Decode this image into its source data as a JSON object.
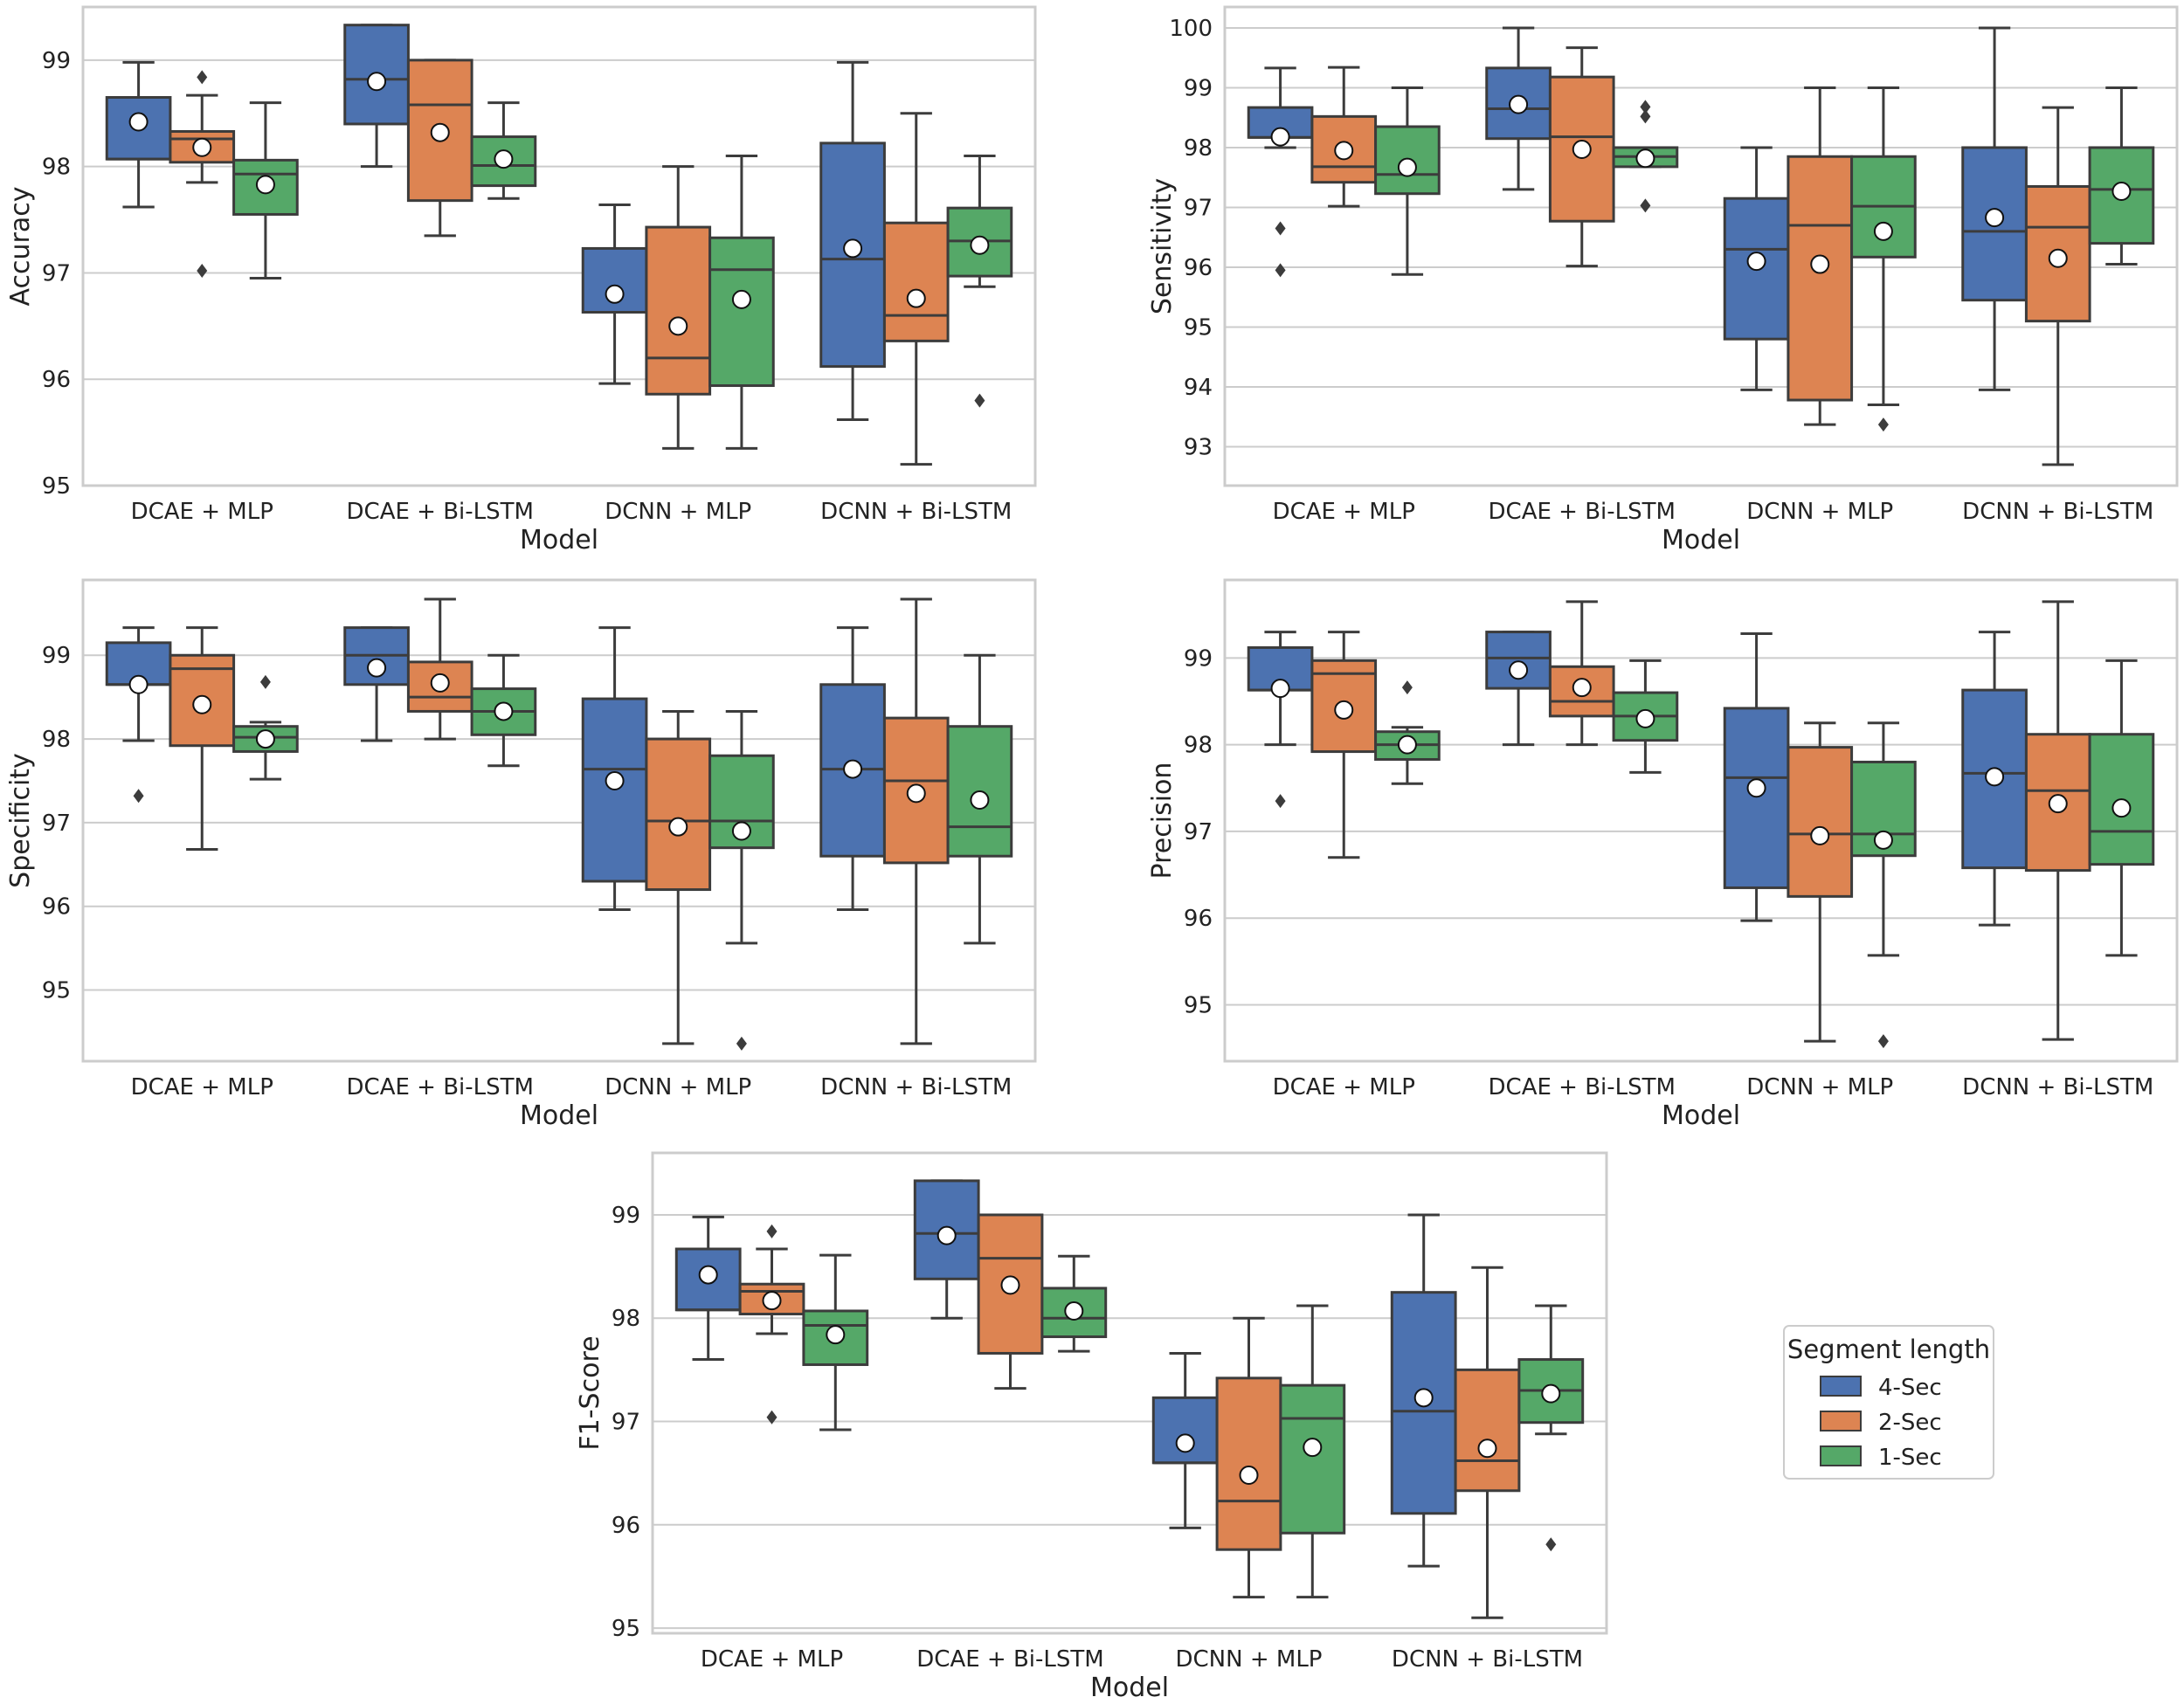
{
  "legend": {
    "title": "Segment length",
    "entries": [
      {
        "label": "4-Sec",
        "color": "#4c72b0"
      },
      {
        "label": "2-Sec",
        "color": "#dd8452"
      },
      {
        "label": "1-Sec",
        "color": "#55a868"
      }
    ]
  },
  "chart_data": [
    {
      "type": "box",
      "title": "",
      "xlabel": "Model",
      "ylabel": "Accuracy",
      "ylim": [
        95,
        99.5
      ],
      "yticks": [
        "95",
        "96",
        "97",
        "98",
        "99"
      ],
      "categories": [
        "DCAE + MLP",
        "DCAE + Bi-LSTM",
        "DCNN + MLP",
        "DCNN + Bi-LSTM"
      ],
      "series": [
        {
          "name": "4-Sec",
          "boxes": [
            {
              "whislo": 97.62,
              "q1": 98.07,
              "med": 98.07,
              "q3": 98.65,
              "whishi": 98.98,
              "mean": 98.42,
              "fliers": []
            },
            {
              "whislo": 98.0,
              "q1": 98.4,
              "med": 98.82,
              "q3": 99.33,
              "whishi": 99.33,
              "mean": 98.8,
              "fliers": []
            },
            {
              "whislo": 95.96,
              "q1": 96.63,
              "med": 96.63,
              "q3": 97.23,
              "whishi": 97.64,
              "mean": 96.8,
              "fliers": []
            },
            {
              "whislo": 95.62,
              "q1": 96.12,
              "med": 97.13,
              "q3": 98.22,
              "whishi": 98.98,
              "mean": 97.23,
              "fliers": []
            }
          ]
        },
        {
          "name": "2-Sec",
          "boxes": [
            {
              "whislo": 97.85,
              "q1": 98.04,
              "med": 98.26,
              "q3": 98.33,
              "whishi": 98.67,
              "mean": 98.18,
              "fliers": [
                98.84,
                97.02
              ]
            },
            {
              "whislo": 97.35,
              "q1": 97.68,
              "med": 98.58,
              "q3": 99.0,
              "whishi": 99.0,
              "mean": 98.32,
              "fliers": []
            },
            {
              "whislo": 95.35,
              "q1": 95.86,
              "med": 96.2,
              "q3": 97.43,
              "whishi": 98.0,
              "mean": 96.5,
              "fliers": []
            },
            {
              "whislo": 95.2,
              "q1": 96.36,
              "med": 96.6,
              "q3": 97.47,
              "whishi": 98.5,
              "mean": 96.76,
              "fliers": []
            }
          ]
        },
        {
          "name": "1-Sec",
          "boxes": [
            {
              "whislo": 96.95,
              "q1": 97.55,
              "med": 97.93,
              "q3": 98.06,
              "whishi": 98.6,
              "mean": 97.83,
              "fliers": []
            },
            {
              "whislo": 97.7,
              "q1": 97.82,
              "med": 98.01,
              "q3": 98.28,
              "whishi": 98.6,
              "mean": 98.07,
              "fliers": []
            },
            {
              "whislo": 95.35,
              "q1": 95.94,
              "med": 97.03,
              "q3": 97.33,
              "whishi": 98.1,
              "mean": 96.75,
              "fliers": []
            },
            {
              "whislo": 96.87,
              "q1": 96.97,
              "med": 97.3,
              "q3": 97.61,
              "whishi": 98.1,
              "mean": 97.26,
              "fliers": [
                95.8
              ]
            }
          ]
        }
      ]
    },
    {
      "type": "box",
      "title": "",
      "xlabel": "Model",
      "ylabel": "Sensitivity",
      "ylim": [
        92.35,
        100.35
      ],
      "yticks": [
        "93",
        "94",
        "95",
        "96",
        "97",
        "98",
        "99",
        "100"
      ],
      "categories": [
        "DCAE + MLP",
        "DCAE + Bi-LSTM",
        "DCNN + MLP",
        "DCNN + Bi-LSTM"
      ],
      "series": [
        {
          "name": "4-Sec",
          "boxes": [
            {
              "whislo": 98.0,
              "q1": 98.17,
              "med": 98.17,
              "q3": 98.67,
              "whishi": 99.33,
              "mean": 98.18,
              "fliers": [
                96.65,
                95.95
              ]
            },
            {
              "whislo": 97.3,
              "q1": 98.15,
              "med": 98.65,
              "q3": 99.33,
              "whishi": 100.0,
              "mean": 98.72,
              "fliers": []
            },
            {
              "whislo": 93.95,
              "q1": 94.8,
              "med": 96.3,
              "q3": 97.15,
              "whishi": 98.0,
              "mean": 96.1,
              "fliers": []
            },
            {
              "whislo": 93.95,
              "q1": 95.45,
              "med": 96.6,
              "q3": 98.0,
              "whishi": 100.0,
              "mean": 96.83,
              "fliers": []
            }
          ]
        },
        {
          "name": "2-Sec",
          "boxes": [
            {
              "whislo": 97.02,
              "q1": 97.42,
              "med": 97.68,
              "q3": 98.52,
              "whishi": 99.34,
              "mean": 97.95,
              "fliers": []
            },
            {
              "whislo": 96.02,
              "q1": 96.77,
              "med": 98.18,
              "q3": 99.18,
              "whishi": 99.67,
              "mean": 97.97,
              "fliers": []
            },
            {
              "whislo": 93.37,
              "q1": 93.78,
              "med": 96.7,
              "q3": 97.85,
              "whishi": 99.0,
              "mean": 96.05,
              "fliers": []
            },
            {
              "whislo": 92.7,
              "q1": 95.1,
              "med": 96.67,
              "q3": 97.35,
              "whishi": 98.67,
              "mean": 96.15,
              "fliers": []
            }
          ]
        },
        {
          "name": "1-Sec",
          "boxes": [
            {
              "whislo": 95.88,
              "q1": 97.23,
              "med": 97.55,
              "q3": 98.35,
              "whishi": 99.0,
              "mean": 97.67,
              "fliers": []
            },
            {
              "whislo": 97.68,
              "q1": 97.68,
              "med": 97.85,
              "q3": 98.0,
              "whishi": 98.0,
              "mean": 97.82,
              "fliers": [
                98.68,
                98.52,
                97.03
              ]
            },
            {
              "whislo": 93.7,
              "q1": 96.17,
              "med": 97.02,
              "q3": 97.85,
              "whishi": 99.0,
              "mean": 96.6,
              "fliers": [
                93.37
              ]
            },
            {
              "whislo": 96.05,
              "q1": 96.4,
              "med": 97.3,
              "q3": 98.0,
              "whishi": 99.0,
              "mean": 97.27,
              "fliers": []
            }
          ]
        }
      ]
    },
    {
      "type": "box",
      "title": "",
      "xlabel": "Model",
      "ylabel": "Specificity",
      "ylim": [
        94.15,
        99.9
      ],
      "yticks": [
        "95",
        "96",
        "97",
        "98",
        "99"
      ],
      "categories": [
        "DCAE + MLP",
        "DCAE + Bi-LSTM",
        "DCNN + MLP",
        "DCNN + Bi-LSTM"
      ],
      "series": [
        {
          "name": "4-Sec",
          "boxes": [
            {
              "whislo": 97.98,
              "q1": 98.65,
              "med": 98.65,
              "q3": 99.15,
              "whishi": 99.33,
              "mean": 98.65,
              "fliers": [
                97.32
              ]
            },
            {
              "whislo": 97.98,
              "q1": 98.65,
              "med": 99.0,
              "q3": 99.33,
              "whishi": 99.33,
              "mean": 98.85,
              "fliers": []
            },
            {
              "whislo": 95.96,
              "q1": 96.3,
              "med": 97.64,
              "q3": 98.48,
              "whishi": 99.33,
              "mean": 97.5,
              "fliers": []
            },
            {
              "whislo": 95.96,
              "q1": 96.6,
              "med": 97.64,
              "q3": 98.65,
              "whishi": 99.33,
              "mean": 97.64,
              "fliers": []
            }
          ]
        },
        {
          "name": "2-Sec",
          "boxes": [
            {
              "whislo": 96.68,
              "q1": 97.92,
              "med": 98.84,
              "q3": 99.0,
              "whishi": 99.33,
              "mean": 98.41,
              "fliers": []
            },
            {
              "whislo": 98.0,
              "q1": 98.33,
              "med": 98.5,
              "q3": 98.92,
              "whishi": 99.67,
              "mean": 98.67,
              "fliers": []
            },
            {
              "whislo": 94.36,
              "q1": 96.2,
              "med": 97.02,
              "q3": 98.0,
              "whishi": 98.33,
              "mean": 96.95,
              "fliers": []
            },
            {
              "whislo": 94.36,
              "q1": 96.52,
              "med": 97.5,
              "q3": 98.25,
              "whishi": 99.67,
              "mean": 97.35,
              "fliers": []
            }
          ]
        },
        {
          "name": "1-Sec",
          "boxes": [
            {
              "whislo": 97.52,
              "q1": 97.85,
              "med": 98.02,
              "q3": 98.15,
              "whishi": 98.2,
              "mean": 98.0,
              "fliers": [
                98.68
              ]
            },
            {
              "whislo": 97.68,
              "q1": 98.05,
              "med": 98.33,
              "q3": 98.6,
              "whishi": 99.0,
              "mean": 98.33,
              "fliers": []
            },
            {
              "whislo": 95.56,
              "q1": 96.7,
              "med": 97.02,
              "q3": 97.8,
              "whishi": 98.33,
              "mean": 96.9,
              "fliers": [
                94.36
              ]
            },
            {
              "whislo": 95.56,
              "q1": 96.6,
              "med": 96.95,
              "q3": 98.15,
              "whishi": 99.0,
              "mean": 97.27,
              "fliers": []
            }
          ]
        }
      ]
    },
    {
      "type": "box",
      "title": "",
      "xlabel": "Model",
      "ylabel": "Precision",
      "ylim": [
        94.35,
        99.9
      ],
      "yticks": [
        "95",
        "96",
        "97",
        "98",
        "99"
      ],
      "categories": [
        "DCAE + MLP",
        "DCAE + Bi-LSTM",
        "DCNN + MLP",
        "DCNN + Bi-LSTM"
      ],
      "series": [
        {
          "name": "4-Sec",
          "boxes": [
            {
              "whislo": 98.0,
              "q1": 98.63,
              "med": 98.63,
              "q3": 99.12,
              "whishi": 99.3,
              "mean": 98.65,
              "fliers": [
                97.35
              ]
            },
            {
              "whislo": 98.0,
              "q1": 98.65,
              "med": 99.0,
              "q3": 99.3,
              "whishi": 99.3,
              "mean": 98.86,
              "fliers": []
            },
            {
              "whislo": 95.97,
              "q1": 96.35,
              "med": 97.62,
              "q3": 98.42,
              "whishi": 99.28,
              "mean": 97.5,
              "fliers": []
            },
            {
              "whislo": 95.92,
              "q1": 96.58,
              "med": 97.67,
              "q3": 98.63,
              "whishi": 99.3,
              "mean": 97.63,
              "fliers": []
            }
          ]
        },
        {
          "name": "2-Sec",
          "boxes": [
            {
              "whislo": 96.7,
              "q1": 97.92,
              "med": 98.82,
              "q3": 98.97,
              "whishi": 99.3,
              "mean": 98.4,
              "fliers": []
            },
            {
              "whislo": 98.0,
              "q1": 98.33,
              "med": 98.5,
              "q3": 98.9,
              "whishi": 99.65,
              "mean": 98.66,
              "fliers": []
            },
            {
              "whislo": 94.58,
              "q1": 96.25,
              "med": 96.97,
              "q3": 97.97,
              "whishi": 98.25,
              "mean": 96.95,
              "fliers": []
            },
            {
              "whislo": 94.6,
              "q1": 96.55,
              "med": 97.47,
              "q3": 98.12,
              "whishi": 99.65,
              "mean": 97.32,
              "fliers": []
            }
          ]
        },
        {
          "name": "1-Sec",
          "boxes": [
            {
              "whislo": 97.55,
              "q1": 97.83,
              "med": 98.0,
              "q3": 98.15,
              "whishi": 98.2,
              "mean": 98.0,
              "fliers": [
                98.66
              ]
            },
            {
              "whislo": 97.68,
              "q1": 98.05,
              "med": 98.33,
              "q3": 98.6,
              "whishi": 98.97,
              "mean": 98.3,
              "fliers": []
            },
            {
              "whislo": 95.57,
              "q1": 96.72,
              "med": 96.97,
              "q3": 97.8,
              "whishi": 98.25,
              "mean": 96.9,
              "fliers": [
                94.58
              ]
            },
            {
              "whislo": 95.57,
              "q1": 96.62,
              "med": 97.0,
              "q3": 98.12,
              "whishi": 98.97,
              "mean": 97.27,
              "fliers": []
            }
          ]
        }
      ]
    },
    {
      "type": "box",
      "title": "",
      "xlabel": "Model",
      "ylabel": "F1-Score",
      "ylim": [
        94.95,
        99.6
      ],
      "yticks": [
        "95",
        "96",
        "97",
        "98",
        "99"
      ],
      "categories": [
        "DCAE + MLP",
        "DCAE + Bi-LSTM",
        "DCNN + MLP",
        "DCNN + Bi-LSTM"
      ],
      "series": [
        {
          "name": "4-Sec",
          "boxes": [
            {
              "whislo": 97.6,
              "q1": 98.08,
              "med": 98.08,
              "q3": 98.67,
              "whishi": 98.98,
              "mean": 98.42,
              "fliers": []
            },
            {
              "whislo": 98.0,
              "q1": 98.38,
              "med": 98.82,
              "q3": 99.33,
              "whishi": 99.33,
              "mean": 98.8,
              "fliers": []
            },
            {
              "whislo": 95.97,
              "q1": 96.6,
              "med": 96.6,
              "q3": 97.23,
              "whishi": 97.66,
              "mean": 96.79,
              "fliers": []
            },
            {
              "whislo": 95.6,
              "q1": 96.11,
              "med": 97.1,
              "q3": 98.25,
              "whishi": 99.0,
              "mean": 97.23,
              "fliers": []
            }
          ]
        },
        {
          "name": "2-Sec",
          "boxes": [
            {
              "whislo": 97.85,
              "q1": 98.04,
              "med": 98.26,
              "q3": 98.33,
              "whishi": 98.67,
              "mean": 98.17,
              "fliers": [
                98.84,
                97.04
              ]
            },
            {
              "whislo": 97.32,
              "q1": 97.66,
              "med": 98.58,
              "q3": 99.0,
              "whishi": 99.0,
              "mean": 98.32,
              "fliers": []
            },
            {
              "whislo": 95.3,
              "q1": 95.76,
              "med": 96.23,
              "q3": 97.42,
              "whishi": 98.0,
              "mean": 96.48,
              "fliers": []
            },
            {
              "whislo": 95.1,
              "q1": 96.33,
              "med": 96.62,
              "q3": 97.5,
              "whishi": 98.49,
              "mean": 96.74,
              "fliers": []
            }
          ]
        },
        {
          "name": "1-Sec",
          "boxes": [
            {
              "whislo": 96.92,
              "q1": 97.55,
              "med": 97.93,
              "q3": 98.07,
              "whishi": 98.61,
              "mean": 97.84,
              "fliers": []
            },
            {
              "whislo": 97.68,
              "q1": 97.82,
              "med": 98.0,
              "q3": 98.29,
              "whishi": 98.6,
              "mean": 98.07,
              "fliers": []
            },
            {
              "whislo": 95.3,
              "q1": 95.92,
              "med": 97.03,
              "q3": 97.35,
              "whishi": 98.12,
              "mean": 96.75,
              "fliers": []
            },
            {
              "whislo": 96.88,
              "q1": 96.99,
              "med": 97.3,
              "q3": 97.6,
              "whishi": 98.12,
              "mean": 97.27,
              "fliers": [
                95.81
              ]
            }
          ]
        }
      ]
    }
  ]
}
